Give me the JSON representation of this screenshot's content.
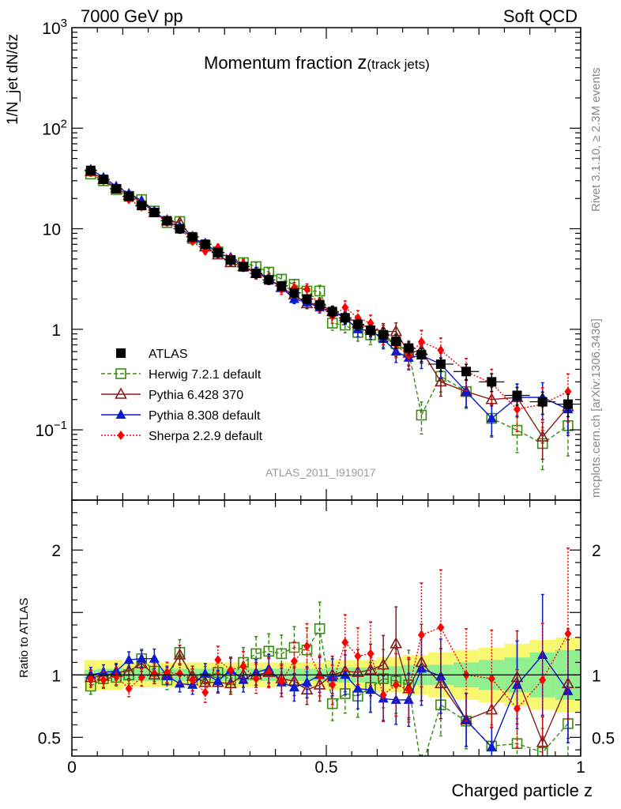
{
  "header": {
    "energy": "7000 GeV pp",
    "process": "Soft QCD",
    "plot_title_main": "Momentum fraction ",
    "plot_title_var": "z",
    "plot_title_sub": "(track jets)",
    "analysis_id": "ATLAS_2011_I919017"
  },
  "side_labels": {
    "rivet": "Rivet 3.1.10, ≥ 2.3M events",
    "site": "mcplots.cern.ch [arXiv:1306.3436]"
  },
  "colors": {
    "ATLAS": "#000000",
    "Herwig": "#3a8a14",
    "Pythia6": "#8b1a1a",
    "Pythia8": "#0a1ad0",
    "Sherpa": "#ff0000",
    "band_inner": "#90f090",
    "band_outer": "#f8f870"
  },
  "chart_data": [
    {
      "type": "scatter",
      "panel": "main",
      "title": "Momentum fraction z(track jets)",
      "xlabel": "Charged particle z",
      "ylabel": "1/N_jet dN/dz",
      "x_scale": "linear",
      "y_scale": "log",
      "xlim": [
        0,
        1
      ],
      "ylim": [
        0.02,
        1000
      ],
      "y_ticks": [
        "10^-1",
        "1",
        "10",
        "10^2",
        "10^3"
      ],
      "x_ticks": [
        "0",
        "0.5",
        "1"
      ],
      "legend_position": "center-left",
      "x": [
        0.037,
        0.062,
        0.087,
        0.112,
        0.137,
        0.162,
        0.187,
        0.212,
        0.237,
        0.262,
        0.287,
        0.312,
        0.337,
        0.362,
        0.387,
        0.412,
        0.437,
        0.462,
        0.487,
        0.512,
        0.537,
        0.562,
        0.587,
        0.612,
        0.637,
        0.662,
        0.687,
        0.725,
        0.775,
        0.825,
        0.875,
        0.925,
        0.975
      ],
      "series": [
        {
          "name": "ATLAS",
          "marker": "square-filled",
          "values": [
            38,
            31,
            25,
            21,
            17,
            14.5,
            12,
            10,
            8.3,
            7,
            5.8,
            4.9,
            4.2,
            3.6,
            3.1,
            2.7,
            2.3,
            2.0,
            1.75,
            1.5,
            1.3,
            1.12,
            0.98,
            0.88,
            0.76,
            0.65,
            0.56,
            0.45,
            0.38,
            0.3,
            0.22,
            0.19,
            0.18
          ],
          "rel_err": [
            0.08,
            0.08,
            0.08,
            0.08,
            0.08,
            0.08,
            0.08,
            0.1,
            0.1,
            0.1,
            0.1,
            0.1,
            0.1,
            0.1,
            0.1,
            0.1,
            0.1,
            0.1,
            0.12,
            0.12,
            0.12,
            0.12,
            0.12,
            0.15,
            0.15,
            0.15,
            0.15,
            0.15,
            0.18,
            0.2,
            0.2,
            0.25,
            0.25
          ]
        },
        {
          "name": "Herwig 7.2.1 default",
          "marker": "square-open",
          "linestyle": "dashed",
          "values": [
            35,
            30,
            24.5,
            21,
            19.5,
            15,
            11.5,
            11.8,
            8.0,
            6.8,
            5.9,
            4.7,
            4.6,
            4.2,
            3.7,
            3.15,
            2.8,
            2.4,
            2.4,
            1.15,
            1.1,
            0.93,
            0.88,
            0.85,
            0.72,
            0.6,
            0.14,
            0.34,
            0.24,
            0.13,
            0.099,
            0.073,
            0.11
          ],
          "ratio": [
            0.91,
            0.97,
            0.98,
            1.0,
            1.13,
            1.03,
            0.96,
            1.18,
            0.96,
            0.97,
            1.02,
            0.96,
            1.1,
            1.17,
            1.19,
            1.17,
            1.22,
            1.2,
            1.37,
            0.77,
            0.85,
            0.83,
            0.9,
            0.97,
            0.95,
            0.92,
            0.25,
            0.76,
            0.63,
            0.43,
            0.45,
            0.38,
            0.61
          ],
          "rel_err": [
            0.05,
            0.05,
            0.05,
            0.05,
            0.05,
            0.06,
            0.06,
            0.07,
            0.07,
            0.08,
            0.08,
            0.08,
            0.09,
            0.1,
            0.1,
            0.11,
            0.12,
            0.13,
            0.14,
            0.15,
            0.16,
            0.18,
            0.2,
            0.22,
            0.25,
            0.28,
            0.35,
            0.3,
            0.32,
            0.35,
            0.4,
            0.45,
            0.5
          ]
        },
        {
          "name": "Pythia 6.428 370",
          "marker": "triangle-open",
          "linestyle": "solid",
          "values": [
            37,
            31,
            25.5,
            21.5,
            18.5,
            14.5,
            12,
            11.5,
            8.2,
            6.6,
            5.5,
            4.6,
            4.2,
            3.6,
            3.2,
            2.6,
            2.2,
            1.8,
            1.8,
            1.5,
            1.35,
            1.15,
            1.02,
            0.95,
            0.95,
            0.58,
            0.62,
            0.3,
            0.24,
            0.2,
            0.21,
            0.085,
            0.17
          ],
          "ratio": [
            0.98,
            0.99,
            1.02,
            1.03,
            1.09,
            1.0,
            1.0,
            1.16,
            0.99,
            0.94,
            0.94,
            0.93,
            1.0,
            1.0,
            1.02,
            0.97,
            0.95,
            0.88,
            0.92,
            1.0,
            1.03,
            1.02,
            1.04,
            1.08,
            1.25,
            0.89,
            1.1,
            0.93,
            0.64,
            0.72,
            0.98,
            0.46,
            0.93
          ],
          "rel_err": [
            0.04,
            0.04,
            0.04,
            0.04,
            0.04,
            0.05,
            0.05,
            0.05,
            0.06,
            0.06,
            0.07,
            0.07,
            0.08,
            0.08,
            0.09,
            0.1,
            0.1,
            0.11,
            0.12,
            0.13,
            0.14,
            0.16,
            0.18,
            0.2,
            0.22,
            0.24,
            0.26,
            0.28,
            0.3,
            0.33,
            0.36,
            0.4,
            0.45
          ]
        },
        {
          "name": "Pythia 8.308 default",
          "marker": "triangle-filled",
          "linestyle": "solid",
          "values": [
            39,
            32.5,
            26.5,
            22.5,
            19,
            15,
            11.8,
            10.5,
            8.0,
            7.2,
            5.7,
            5.2,
            4.1,
            3.8,
            3.2,
            2.6,
            2.0,
            1.85,
            1.65,
            1.5,
            1.3,
            1.0,
            0.97,
            0.8,
            0.6,
            0.52,
            0.55,
            0.45,
            0.24,
            0.13,
            0.21,
            0.21,
            0.16
          ],
          "ratio": [
            1.0,
            1.02,
            1.03,
            1.12,
            1.13,
            1.13,
            0.99,
            0.93,
            0.92,
            1.01,
            0.95,
            1.04,
            0.96,
            1.02,
            1.05,
            0.94,
            0.9,
            0.94,
            1.0,
            0.98,
            1.0,
            0.89,
            0.88,
            0.81,
            0.8,
            0.8,
            1.05,
            0.99,
            0.64,
            0.42,
            0.92,
            1.16,
            0.87
          ],
          "rel_err": [
            0.04,
            0.04,
            0.04,
            0.04,
            0.04,
            0.05,
            0.05,
            0.05,
            0.06,
            0.06,
            0.07,
            0.07,
            0.08,
            0.08,
            0.09,
            0.1,
            0.1,
            0.11,
            0.12,
            0.13,
            0.14,
            0.16,
            0.18,
            0.2,
            0.22,
            0.24,
            0.26,
            0.28,
            0.3,
            0.33,
            0.36,
            0.4,
            0.45
          ]
        },
        {
          "name": "Sherpa 2.2.9 default",
          "marker": "diamond-filled",
          "linestyle": "dotted",
          "values": [
            37.5,
            30,
            25,
            19.5,
            16.5,
            14.5,
            11.5,
            10.2,
            7.5,
            6.0,
            6.5,
            5.1,
            4.5,
            3.5,
            3.2,
            2.5,
            2.6,
            2.5,
            1.75,
            1.35,
            1.65,
            1.3,
            1.15,
            0.9,
            0.7,
            0.55,
            0.75,
            0.62,
            0.38,
            0.29,
            0.16,
            0.18,
            0.24
          ],
          "ratio": [
            0.97,
            0.96,
            0.99,
            0.89,
            0.98,
            1.01,
            1.02,
            1.01,
            0.96,
            0.86,
            1.12,
            1.04,
            1.07,
            0.97,
            1.02,
            0.95,
            1.11,
            1.23,
            0.99,
            0.92,
            1.26,
            1.15,
            1.17,
            0.84,
            0.92,
            0.88,
            1.32,
            1.38,
            1.0,
            0.97,
            0.73,
            0.96,
            1.33
          ],
          "rel_err": [
            0.05,
            0.05,
            0.05,
            0.05,
            0.05,
            0.06,
            0.06,
            0.06,
            0.07,
            0.07,
            0.08,
            0.08,
            0.09,
            0.1,
            0.1,
            0.11,
            0.12,
            0.13,
            0.14,
            0.15,
            0.16,
            0.18,
            0.2,
            0.22,
            0.25,
            0.27,
            0.3,
            0.32,
            0.35,
            0.38,
            0.4,
            0.45,
            0.5
          ]
        }
      ]
    },
    {
      "type": "scatter",
      "panel": "ratio",
      "ylabel": "Ratio to ATLAS",
      "xlabel": "Charged particle z",
      "xlim": [
        0,
        1
      ],
      "ylim": [
        0.35,
        2.4
      ],
      "y_ticks": [
        "0.5",
        "1",
        "2"
      ],
      "x_ticks": [
        "0",
        "0.5",
        "1"
      ],
      "reference_line": 1,
      "band_inner_halfwidth": [
        0.04,
        0.05,
        0.05,
        0.05,
        0.05,
        0.05,
        0.05,
        0.05,
        0.05,
        0.05,
        0.05,
        0.05,
        0.05,
        0.05,
        0.05,
        0.05,
        0.05,
        0.05,
        0.05,
        0.06,
        0.06,
        0.06,
        0.06,
        0.07,
        0.07,
        0.08,
        0.08,
        0.08,
        0.1,
        0.12,
        0.14,
        0.18,
        0.2
      ],
      "band_outer_halfwidth": [
        0.12,
        0.12,
        0.12,
        0.1,
        0.1,
        0.1,
        0.1,
        0.1,
        0.1,
        0.1,
        0.1,
        0.1,
        0.1,
        0.1,
        0.1,
        0.1,
        0.1,
        0.1,
        0.1,
        0.12,
        0.12,
        0.12,
        0.12,
        0.14,
        0.14,
        0.16,
        0.16,
        0.18,
        0.2,
        0.22,
        0.25,
        0.28,
        0.3
      ]
    }
  ]
}
